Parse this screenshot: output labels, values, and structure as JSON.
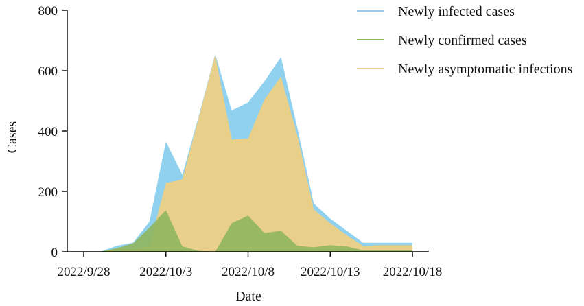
{
  "chart_data": {
    "type": "area",
    "xlabel": "Date",
    "ylabel": "Cases",
    "x": [
      "2022/9/28",
      "2022/9/29",
      "2022/9/30",
      "2022/10/1",
      "2022/10/2",
      "2022/10/3",
      "2022/10/4",
      "2022/10/5",
      "2022/10/6",
      "2022/10/7",
      "2022/10/8",
      "2022/10/9",
      "2022/10/10",
      "2022/10/11",
      "2022/10/12",
      "2022/10/13",
      "2022/10/14",
      "2022/10/15",
      "2022/10/16",
      "2022/10/17",
      "2022/10/18"
    ],
    "xticks": [
      "2022/9/28",
      "2022/10/3",
      "2022/10/8",
      "2022/10/13",
      "2022/10/18"
    ],
    "xtick_index": [
      0,
      5,
      10,
      15,
      20
    ],
    "yticks": [
      0,
      200,
      400,
      600,
      800
    ],
    "ylim": [
      0,
      800
    ],
    "series": [
      {
        "name": "Newly infected cases",
        "color": "#8fd1ef",
        "values": [
          0,
          0,
          20,
          30,
          100,
          365,
          255,
          450,
          655,
          468,
          495,
          565,
          645,
          410,
          160,
          110,
          70,
          30,
          30,
          30,
          30
        ]
      },
      {
        "name": "Newly asymptomatic infections",
        "color": "#e9d08a",
        "values": [
          0,
          0,
          10,
          8,
          20,
          228,
          240,
          445,
          652,
          372,
          375,
          505,
          580,
          385,
          140,
          95,
          55,
          20,
          22,
          22,
          22
        ]
      },
      {
        "name": "Newly confirmed cases",
        "color": "#8fb55e",
        "values": [
          0,
          0,
          12,
          28,
          80,
          138,
          18,
          3,
          0,
          95,
          120,
          62,
          70,
          20,
          15,
          22,
          18,
          5,
          5,
          5,
          5
        ]
      }
    ],
    "legend": [
      {
        "label": "Newly infected cases",
        "color": "#8fd1ef"
      },
      {
        "label": "Newly confirmed cases",
        "color": "#8fb55e"
      },
      {
        "label": "Newly asymptomatic infections",
        "color": "#e9d08a"
      }
    ],
    "legend_position": "top-right"
  }
}
